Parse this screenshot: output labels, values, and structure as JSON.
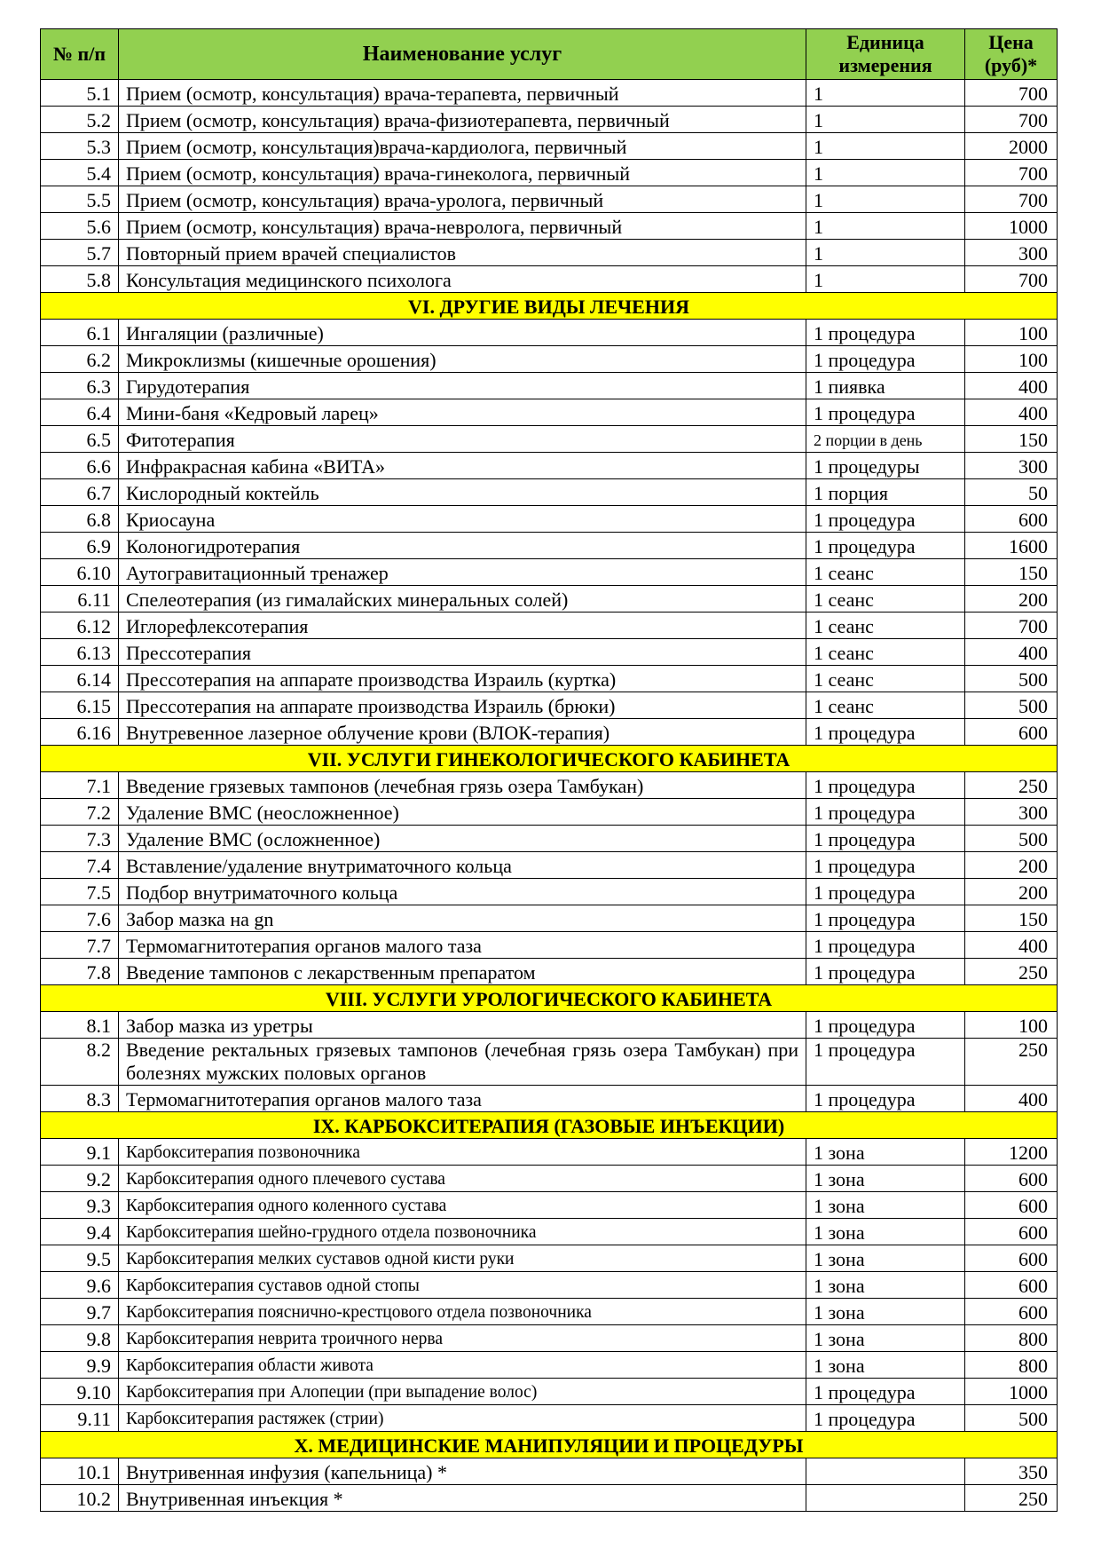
{
  "header": {
    "num": "№ п/п",
    "name": "Наименование услуг",
    "unit": "Единица измерения",
    "price": "Цена (руб)*"
  },
  "colors": {
    "header_bg": "#92d050",
    "section_bg": "#ffff00"
  },
  "blocks": [
    {
      "title": null,
      "rows": [
        {
          "num": "5.1",
          "name": "Прием (осмотр, консультация) врача-терапевта, первичный",
          "unit": "1",
          "price": "700"
        },
        {
          "num": "5.2",
          "name": "Прием (осмотр, консультация) врача-физиотерапевта, первичный",
          "unit": "1",
          "price": "700"
        },
        {
          "num": "5.3",
          "name": "Прием (осмотр, консультация)врача-кардиолога, первичный",
          "unit": "1",
          "price": "2000"
        },
        {
          "num": "5.4",
          "name": "Прием (осмотр, консультация) врача-гинеколога, первичный",
          "unit": "1",
          "price": "700"
        },
        {
          "num": "5.5",
          "name": "Прием (осмотр, консультация) врача-уролога, первичный",
          "unit": "1",
          "price": "700"
        },
        {
          "num": "5.6",
          "name": "Прием (осмотр, консультация) врача-невролога, первичный",
          "unit": "1",
          "price": "1000"
        },
        {
          "num": "5.7",
          "name": "Повторный прием врачей специалистов",
          "unit": "1",
          "price": "300"
        },
        {
          "num": "5.8",
          "name": "Консультация медицинского психолога",
          "unit": "1",
          "price": "700"
        }
      ]
    },
    {
      "title": "VI. ДРУГИЕ ВИДЫ ЛЕЧЕНИЯ",
      "rows": [
        {
          "num": "6.1",
          "name": "Ингаляции (различные)",
          "unit": "1 процедура",
          "price": "100"
        },
        {
          "num": "6.2",
          "name": "Микроклизмы (кишечные орошения)",
          "unit": "1 процедура",
          "price": "100"
        },
        {
          "num": "6.3",
          "name": "Гирудотерапия",
          "unit": "1 пиявка",
          "price": "400"
        },
        {
          "num": "6.4",
          "name": "Мини-баня «Кедровый ларец»",
          "unit": "1 процедура",
          "price": "400"
        },
        {
          "num": "6.5",
          "name": "Фитотерапия",
          "unit": "2 порции в день",
          "price": "150"
        },
        {
          "num": "6.6",
          "name": "Инфракрасная кабина «ВИТА»",
          "unit": "1 процедуры",
          "price": "300"
        },
        {
          "num": "6.7",
          "name": "Кислородный коктейль",
          "unit": "1 порция",
          "price": "50"
        },
        {
          "num": "6.8",
          "name": "Криосауна",
          "unit": "1 процедура",
          "price": "600"
        },
        {
          "num": "6.9",
          "name": "Колоногидротерапия",
          "unit": "1 процедура",
          "price": "1600"
        },
        {
          "num": "6.10",
          "name": "Аутогравитационный тренажер",
          "unit": "1 сеанс",
          "price": "150"
        },
        {
          "num": "6.11",
          "name": "Спелеотерапия (из гималайских минеральных солей)",
          "unit": "1 сеанс",
          "price": "200"
        },
        {
          "num": "6.12",
          "name": "Иглорефлексотерапия",
          "unit": "1 сеанс",
          "price": "700"
        },
        {
          "num": "6.13",
          "name": "Прессотерапия",
          "unit": "1 сеанс",
          "price": "400"
        },
        {
          "num": "6.14",
          "name": "Прессотерапия на аппарате производства Израиль (куртка)",
          "unit": "1 сеанс",
          "price": "500"
        },
        {
          "num": "6.15",
          "name": "Прессотерапия на аппарате производства Израиль (брюки)",
          "unit": "1 сеанс",
          "price": "500"
        },
        {
          "num": "6.16",
          "name": "Внутревенное лазерное облучение крови (ВЛОК-терапия)",
          "unit": "1 процедура",
          "price": "600"
        }
      ]
    },
    {
      "title": "VII. УСЛУГИ ГИНЕКОЛОГИЧЕСКОГО КАБИНЕТА",
      "rows": [
        {
          "num": "7.1",
          "name": "Введение грязевых тампонов  (лечебная грязь озера Тамбукан)",
          "unit": "1 процедура",
          "price": "250"
        },
        {
          "num": "7.2",
          "name": "Удаление ВМС (неосложненное)",
          "unit": "1 процедура",
          "price": "300"
        },
        {
          "num": "7.3",
          "name": "Удаление ВМС (осложненное)",
          "unit": "1 процедура",
          "price": "500"
        },
        {
          "num": "7.4",
          "name": "Вставление/удаление внутриматочного кольца",
          "unit": "1 процедура",
          "price": "200"
        },
        {
          "num": "7.5",
          "name": "Подбор внутриматочного кольца",
          "unit": "1 процедура",
          "price": "200"
        },
        {
          "num": "7.6",
          "name": "Забор мазка на gn",
          "unit": "1 процедура",
          "price": "150"
        },
        {
          "num": "7.7",
          "name": "Термомагнитотерапия органов малого таза",
          "unit": "1 процедура",
          "price": "400"
        },
        {
          "num": "7.8",
          "name": "Введение тампонов с лекарственным препаратом",
          "unit": "1 процедура",
          "price": "250"
        }
      ]
    },
    {
      "title": "VIII. УСЛУГИ УРОЛОГИЧЕСКОГО КАБИНЕТА",
      "rows": [
        {
          "num": "8.1",
          "name": "Забор мазка из уретры",
          "unit": "1 процедура",
          "price": "100"
        },
        {
          "num": "8.2",
          "name": "Введение ректальных грязевых тампонов (лечебная грязь озера Тамбукан) при болезнях мужских половых органов",
          "unit": "1 процедура",
          "price": "250"
        },
        {
          "num": "8.3",
          "name": "Термомагнитотерапия органов малого таза",
          "unit": "1 процедура",
          "price": "400"
        }
      ]
    },
    {
      "title": "IX. КАРБОКСИТЕРАПИЯ (ГАЗОВЫЕ ИНЪЕКЦИИ)",
      "small": true,
      "rows": [
        {
          "num": "9.1",
          "name": "Карбокситерапия позвоночника",
          "unit": "1 зона",
          "price": "1200"
        },
        {
          "num": "9.2",
          "name": "Карбокситерапия одного плечевого сустава",
          "unit": "1 зона",
          "price": "600"
        },
        {
          "num": "9.3",
          "name": "Карбокситерапия одного коленного сустава",
          "unit": "1 зона",
          "price": "600"
        },
        {
          "num": "9.4",
          "name": "Карбокситерапия шейно-грудного отдела позвоночника",
          "unit": "1 зона",
          "price": "600"
        },
        {
          "num": "9.5",
          "name": "Карбокситерапия мелких суставов одной кисти руки",
          "unit": "1 зона",
          "price": "600"
        },
        {
          "num": "9.6",
          "name": "Карбокситерапия суставов одной стопы",
          "unit": "1 зона",
          "price": "600"
        },
        {
          "num": "9.7",
          "name": "Карбокситерапия пояснично-крестцового отдела позвоночника",
          "unit": "1 зона",
          "price": "600"
        },
        {
          "num": "9.8",
          "name": "Карбокситерапия неврита троичного нерва",
          "unit": "1 зона",
          "price": "800"
        },
        {
          "num": "9.9",
          "name": "Карбокситерапия области живота",
          "unit": "1 зона",
          "price": "800"
        },
        {
          "num": "9.10",
          "name": "Карбокситерапия при Алопеции (при выпадение волос)",
          "unit": "1 процедура",
          "price": "1000"
        },
        {
          "num": "9.11",
          "name": "Карбокситерапия растяжек (стрии)",
          "unit": "1 процедура",
          "price": "500"
        }
      ]
    },
    {
      "title": "X. МЕДИЦИНСКИЕ МАНИПУЛЯЦИИ И ПРОЦЕДУРЫ",
      "rows": [
        {
          "num": "10.1",
          "name": " Внутривенная инфузия (капельница) *",
          "unit": "",
          "price": "350"
        },
        {
          "num": "10.2",
          "name": "Внутривенная инъекция *",
          "unit": "",
          "price": "250"
        }
      ]
    }
  ]
}
